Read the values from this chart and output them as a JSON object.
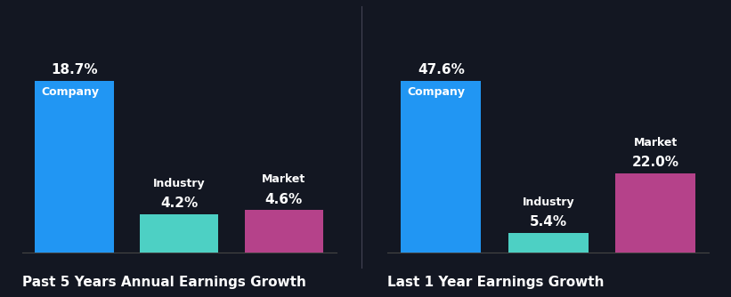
{
  "background_color": "#131722",
  "charts": [
    {
      "title": "Past 5 Years Annual Earnings Growth",
      "bars": [
        {
          "label": "Company",
          "value": 18.7,
          "color": "#2196f3",
          "label_inside": true
        },
        {
          "label": "Industry",
          "value": 4.2,
          "color": "#4dd0c4",
          "label_inside": false
        },
        {
          "label": "Market",
          "value": 4.6,
          "color": "#b5428a",
          "label_inside": false
        }
      ]
    },
    {
      "title": "Last 1 Year Earnings Growth",
      "bars": [
        {
          "label": "Company",
          "value": 47.6,
          "color": "#2196f3",
          "label_inside": true
        },
        {
          "label": "Industry",
          "value": 5.4,
          "color": "#4dd0c4",
          "label_inside": false
        },
        {
          "label": "Market",
          "value": 22.0,
          "color": "#b5428a",
          "label_inside": false
        }
      ]
    }
  ],
  "title_color": "#ffffff",
  "label_color": "#ffffff",
  "value_color": "#ffffff",
  "title_fontsize": 11,
  "label_fontsize": 9,
  "value_fontsize": 11,
  "bar_width": 0.75
}
